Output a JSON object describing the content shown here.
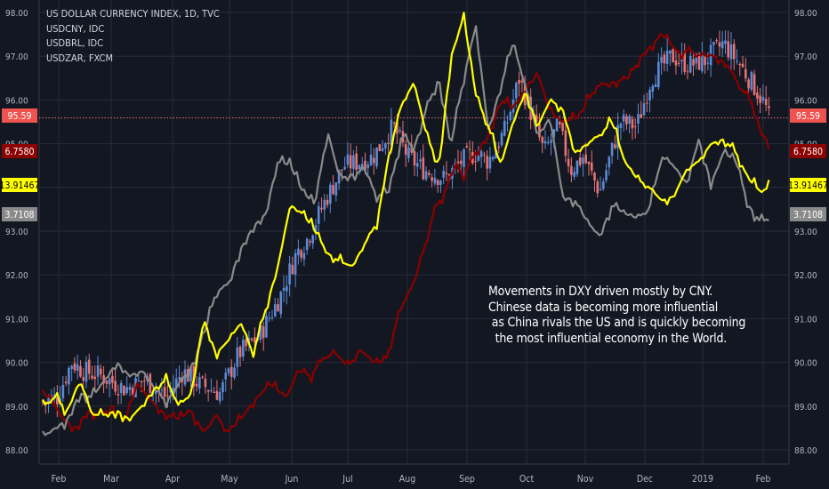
{
  "chart_data": {
    "type": "line",
    "xlabels": [
      "Feb",
      "Mar",
      "Apr",
      "May",
      "Jun",
      "Jul",
      "Aug",
      "Sep",
      "Oct",
      "Nov",
      "Dec",
      "2019",
      "Feb"
    ],
    "y_ticks": [
      "98.00",
      "97.00",
      "96.00",
      "95.00",
      "94.00",
      "93.00",
      "92.00",
      "91.00",
      "90.00",
      "89.00",
      "88.00"
    ],
    "ylim": [
      87.85,
      98.05
    ],
    "legend": [
      "US DOLLAR CURRENCY INDEX, 1D, TVC",
      "USDCNY, IDC",
      "USDBRL, IDC",
      "USDZAR, FXCM"
    ],
    "price_labels": [
      {
        "text": "95.59",
        "bg": "#ef5350",
        "fg": "#ffffff"
      },
      {
        "text": "6.7580",
        "bg": "#8b0000",
        "fg": "#ffffff"
      },
      {
        "text": "13.91467",
        "bg": "#ffff00",
        "fg": "#000000"
      },
      {
        "text": "3.7108",
        "bg": "#8a8a8a",
        "fg": "#ffffff"
      }
    ],
    "annotation": "Movements in DXY driven mostly by CNY.\nChinese data is becoming more influential\n as China rivals the US and is quickly becoming\n  the most influential economy in the World.",
    "colors": {
      "background": "#131722",
      "grid": "#262b3b",
      "candle_up": "#5b8bd6",
      "candle_down": "#e57373",
      "usdcny": "#8b0000",
      "usdbrl": "#8a8a8a",
      "usdzar": "#ffff00"
    },
    "series": [
      {
        "name": "US DOLLAR CURRENCY INDEX",
        "style": "candles",
        "x": [
          0,
          7,
          14,
          20,
          28,
          40,
          50,
          60,
          68,
          76,
          86,
          95,
          105,
          115,
          123,
          128,
          138,
          146,
          155,
          160,
          170,
          177,
          185,
          195,
          203,
          210,
          216,
          224,
          231,
          236,
          243,
          250,
          256,
          262,
          270,
          280,
          288,
          295,
          305,
          313,
          321,
          330,
          338,
          345,
          350,
          352
        ],
        "values": [
          89.1,
          89.2,
          90.0,
          89.8,
          89.7,
          89.4,
          89.6,
          89.2,
          89.8,
          89.5,
          89.3,
          90.2,
          90.6,
          91.5,
          92.5,
          92.8,
          93.8,
          94.5,
          94.6,
          94.7,
          95.4,
          94.7,
          94.4,
          94.2,
          94.6,
          94.8,
          94.6,
          95.3,
          96.5,
          95.8,
          94.8,
          95.4,
          94.4,
          94.7,
          93.9,
          95.5,
          95.4,
          96.5,
          97.0,
          96.8,
          96.9,
          97.3,
          96.8,
          96.3,
          95.9,
          95.59
        ]
      },
      {
        "name": "USDCNY",
        "x": [
          0,
          5,
          10,
          16,
          22,
          28,
          34,
          40,
          46,
          53,
          60,
          66,
          72,
          78,
          84,
          90,
          96,
          102,
          110,
          118,
          124,
          130,
          136,
          142,
          148,
          154,
          160,
          166,
          172,
          176,
          180,
          186,
          190,
          196,
          200,
          204,
          210,
          216,
          222,
          228,
          234,
          240,
          246,
          252,
          260,
          268,
          276,
          284,
          290,
          300,
          308,
          314,
          320,
          326,
          332,
          338,
          344,
          348,
          352
        ],
        "values": [
          89.3,
          89.1,
          88.7,
          88.5,
          88.9,
          88.8,
          89.0,
          88.7,
          89.5,
          89.1,
          88.8,
          88.7,
          88.9,
          88.4,
          88.8,
          88.4,
          88.7,
          89.1,
          89.5,
          89.2,
          89.8,
          89.7,
          90.1,
          90.2,
          89.9,
          90.3,
          90.0,
          90.0,
          91.0,
          91.5,
          91.8,
          92.8,
          93.5,
          94.0,
          94.5,
          94.3,
          94.8,
          95.2,
          96.0,
          95.8,
          96.2,
          96.6,
          95.7,
          95.5,
          95.6,
          96.3,
          96.4,
          96.5,
          97.0,
          97.5,
          97.1,
          97.1,
          97.0,
          97.0,
          96.8,
          96.3,
          95.9,
          95.3,
          95.0
        ]
      },
      {
        "name": "USDBRL",
        "x": [
          0,
          6,
          12,
          18,
          24,
          30,
          36,
          42,
          48,
          54,
          60,
          66,
          72,
          78,
          84,
          90,
          96,
          102,
          108,
          114,
          120,
          126,
          132,
          138,
          144,
          150,
          156,
          162,
          168,
          174,
          180,
          186,
          192,
          198,
          204,
          210,
          216,
          222,
          228,
          234,
          240,
          246,
          252,
          258,
          264,
          270,
          276,
          282,
          288,
          294,
          300,
          306,
          312,
          318,
          324,
          330,
          336,
          342,
          348,
          352
        ],
        "values": [
          88.3,
          88.5,
          88.7,
          89.3,
          89.2,
          89.6,
          90.0,
          89.7,
          89.8,
          89.4,
          89.1,
          89.5,
          89.9,
          90.6,
          91.6,
          91.8,
          92.6,
          93.1,
          93.4,
          94.6,
          94.5,
          93.9,
          93.6,
          95.3,
          94.2,
          94.3,
          94.4,
          93.8,
          93.9,
          95.2,
          94.9,
          95.8,
          96.5,
          95.0,
          96.5,
          97.7,
          95.3,
          96.3,
          97.3,
          96.3,
          95.2,
          95.6,
          93.8,
          93.7,
          93.2,
          92.9,
          93.6,
          93.4,
          93.3,
          93.5,
          94.7,
          94.5,
          94.1,
          95.1,
          94.1,
          94.8,
          94.6,
          93.6,
          93.2,
          93.3
        ]
      },
      {
        "name": "USDZAR",
        "x": [
          0,
          6,
          12,
          18,
          24,
          30,
          36,
          42,
          48,
          54,
          60,
          66,
          72,
          78,
          84,
          90,
          96,
          102,
          108,
          114,
          120,
          126,
          132,
          138,
          144,
          150,
          156,
          162,
          168,
          174,
          180,
          186,
          192,
          198,
          204,
          210,
          216,
          222,
          228,
          234,
          240,
          246,
          252,
          258,
          264,
          270,
          276,
          282,
          288,
          294,
          300,
          306,
          312,
          318,
          324,
          330,
          336,
          342,
          348,
          352
        ],
        "values": [
          89.0,
          89.2,
          88.9,
          89.6,
          88.8,
          88.8,
          88.9,
          88.7,
          89.0,
          89.4,
          89.6,
          89.0,
          89.3,
          91.0,
          90.2,
          90.5,
          90.9,
          90.2,
          91.2,
          92.2,
          93.6,
          93.4,
          93.0,
          92.5,
          92.3,
          92.2,
          92.7,
          93.2,
          94.8,
          95.9,
          96.4,
          95.2,
          94.5,
          97.0,
          97.9,
          96.1,
          95.4,
          94.5,
          95.5,
          96.2,
          95.4,
          96.0,
          95.8,
          94.8,
          95.0,
          95.2,
          95.5,
          94.6,
          94.2,
          94.0,
          93.7,
          93.8,
          94.4,
          94.6,
          95.0,
          95.1,
          94.8,
          94.2,
          93.9,
          94.0
        ]
      }
    ]
  }
}
